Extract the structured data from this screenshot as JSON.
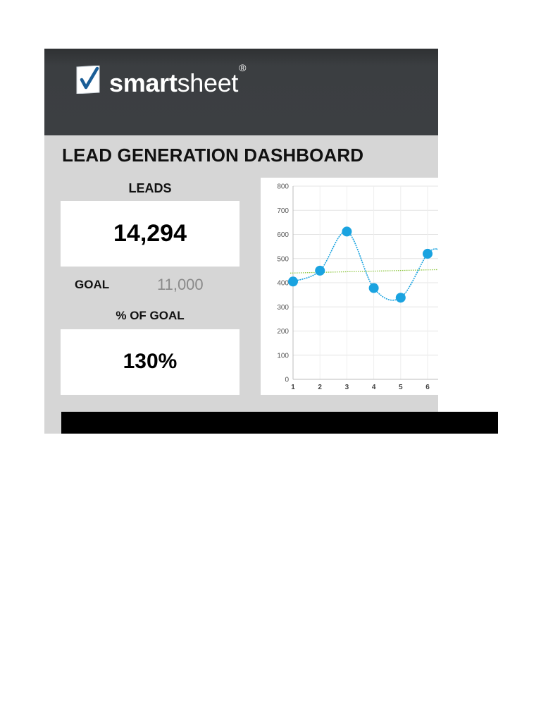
{
  "brand": {
    "logo_icon": "checkmark-document-icon",
    "name_bold": "smart",
    "name_light": "sheet",
    "trademark": "®"
  },
  "dashboard": {
    "title": "LEAD GENERATION DASHBOARD",
    "leads_label": "LEADS",
    "leads_value": "14,294",
    "goal_label": "GOAL",
    "goal_value": "11,000",
    "pct_label": "% OF GOAL",
    "pct_value": "130%"
  },
  "colors": {
    "header_bg": "#3c3f42",
    "panel_bg": "#d6d6d6",
    "series": "#1aa3e0",
    "trend": "#8dc63f",
    "goal_text": "#8a8a8a"
  },
  "chart_data": {
    "type": "line",
    "x": [
      1,
      2,
      3,
      4,
      5,
      6
    ],
    "series": [
      {
        "values": [
          405,
          450,
          612,
          378,
          338,
          520
        ],
        "color": "#1aa3e0",
        "smooth": true,
        "markers": true
      }
    ],
    "trendline": {
      "start": 440,
      "end": 455,
      "color": "#8dc63f",
      "style": "dotted"
    },
    "ylim": [
      0,
      800
    ],
    "yticks": [
      0,
      100,
      200,
      300,
      400,
      500,
      600,
      700,
      800
    ],
    "xticks": [
      "1",
      "2",
      "3",
      "4",
      "5",
      "6"
    ],
    "grid": true,
    "title": "",
    "xlabel": "",
    "ylabel": ""
  }
}
